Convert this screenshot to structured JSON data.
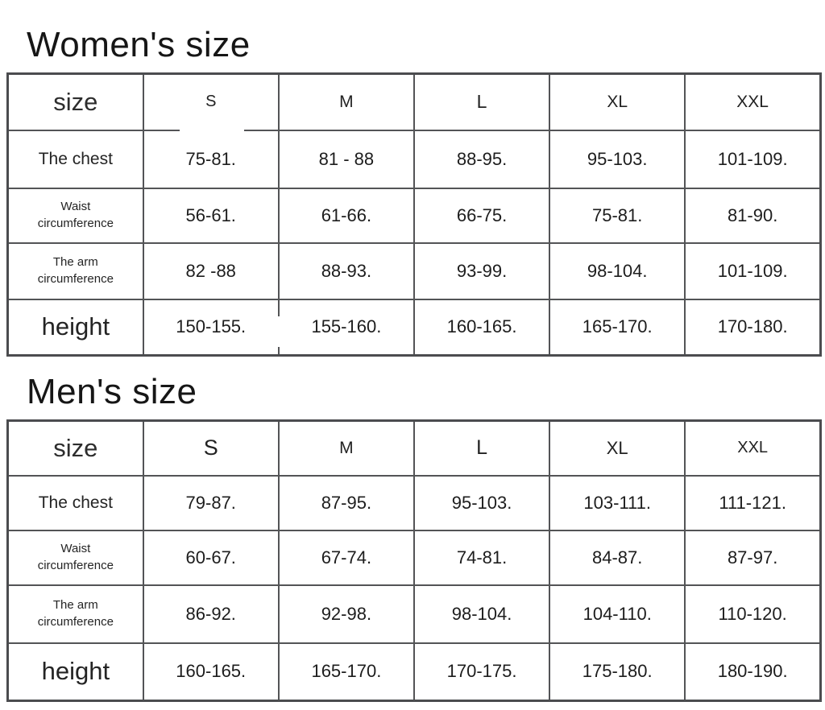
{
  "colors": {
    "table_border": "#4b4c4f",
    "text": "#1f1f1f"
  },
  "women": {
    "title": "Women's size",
    "header": [
      "size",
      "S",
      "M",
      "L",
      "XL",
      "XXL"
    ],
    "rows": [
      {
        "label": "The chest",
        "values": [
          "75-81.",
          "81 - 88",
          "88-95.",
          "95-103.",
          "101-109."
        ]
      },
      {
        "label": "Waist\ncircumference",
        "values": [
          "56-61.",
          "61-66.",
          "66-75.",
          "75-81.",
          "81-90."
        ]
      },
      {
        "label": "The arm\ncircumference",
        "values": [
          "82 -88",
          "88-93.",
          "93-99.",
          "98-104.",
          "101-109."
        ]
      },
      {
        "label": "height",
        "values": [
          "150-155.",
          "155-160.",
          "160-165.",
          "165-170.",
          "170-180."
        ]
      }
    ]
  },
  "men": {
    "title": "Men's size",
    "header": [
      "size",
      "S",
      "M",
      "L",
      "XL",
      "XXL"
    ],
    "rows": [
      {
        "label": "The chest",
        "values": [
          "79-87.",
          "87-95.",
          "95-103.",
          "103-111.",
          "111-121."
        ]
      },
      {
        "label": "Waist\ncircumference",
        "values": [
          "60-67.",
          "67-74.",
          "74-81.",
          "84-87.",
          "87-97."
        ]
      },
      {
        "label": "The arm\ncircumference",
        "values": [
          "86-92.",
          "92-98.",
          "98-104.",
          "104-110.",
          "110-120."
        ]
      },
      {
        "label": "height",
        "values": [
          "160-165.",
          "165-170.",
          "170-175.",
          "175-180.",
          "180-190."
        ]
      }
    ]
  }
}
